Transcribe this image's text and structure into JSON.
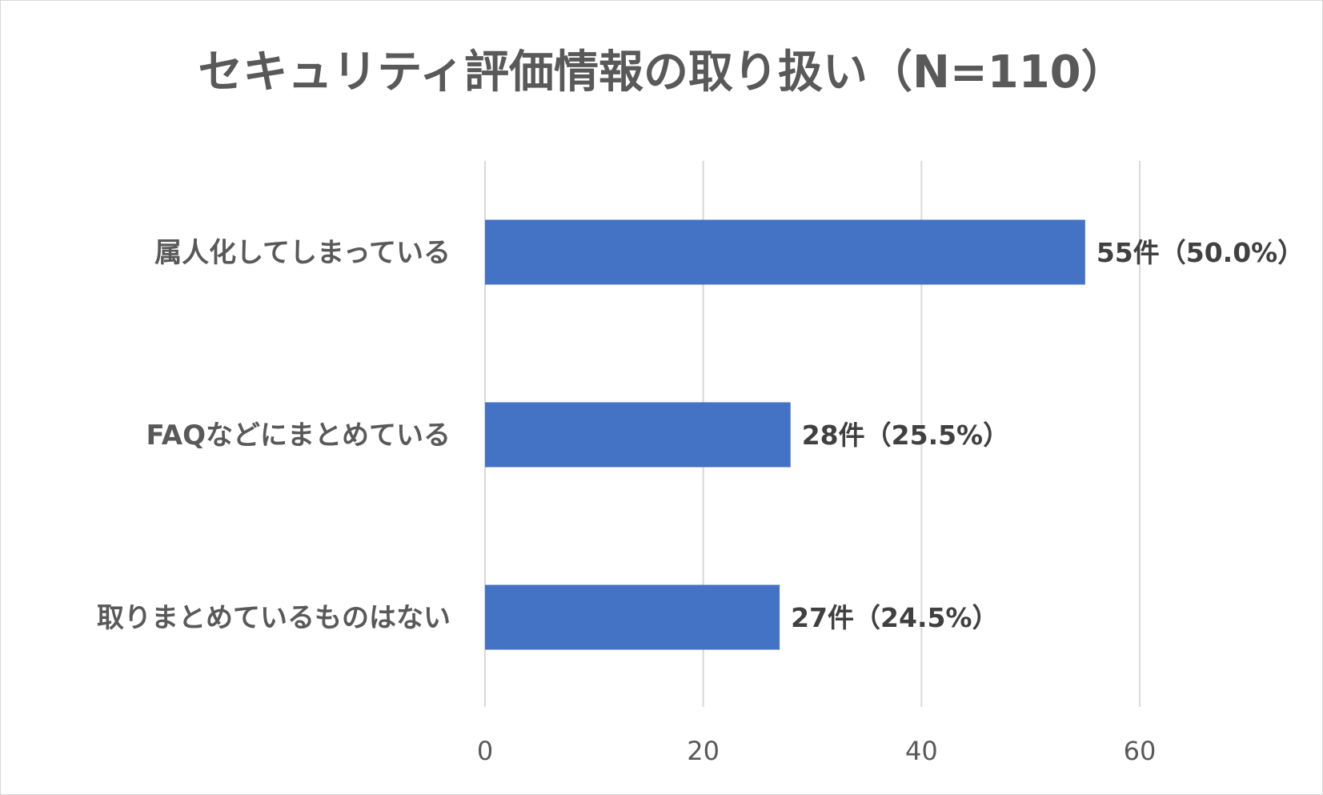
{
  "chart_data": {
    "type": "bar",
    "orientation": "horizontal",
    "title": "セキュリティ評価情報の取り扱い（N=110）",
    "categories": [
      "属人化してしまっている",
      "FAQなどにまとめている",
      "取りまとめているものはない"
    ],
    "values": [
      55,
      28,
      27
    ],
    "data_labels": [
      "55件（50.0%）",
      "28件（25.5%）",
      "27件（24.5%）"
    ],
    "xlim": [
      0,
      60
    ],
    "xticks": [
      0,
      20,
      40,
      60
    ],
    "tick_labels": [
      "0",
      "20",
      "40",
      "60"
    ],
    "grid": "vertical",
    "legend": "none",
    "bar_color": "#4472c4"
  }
}
